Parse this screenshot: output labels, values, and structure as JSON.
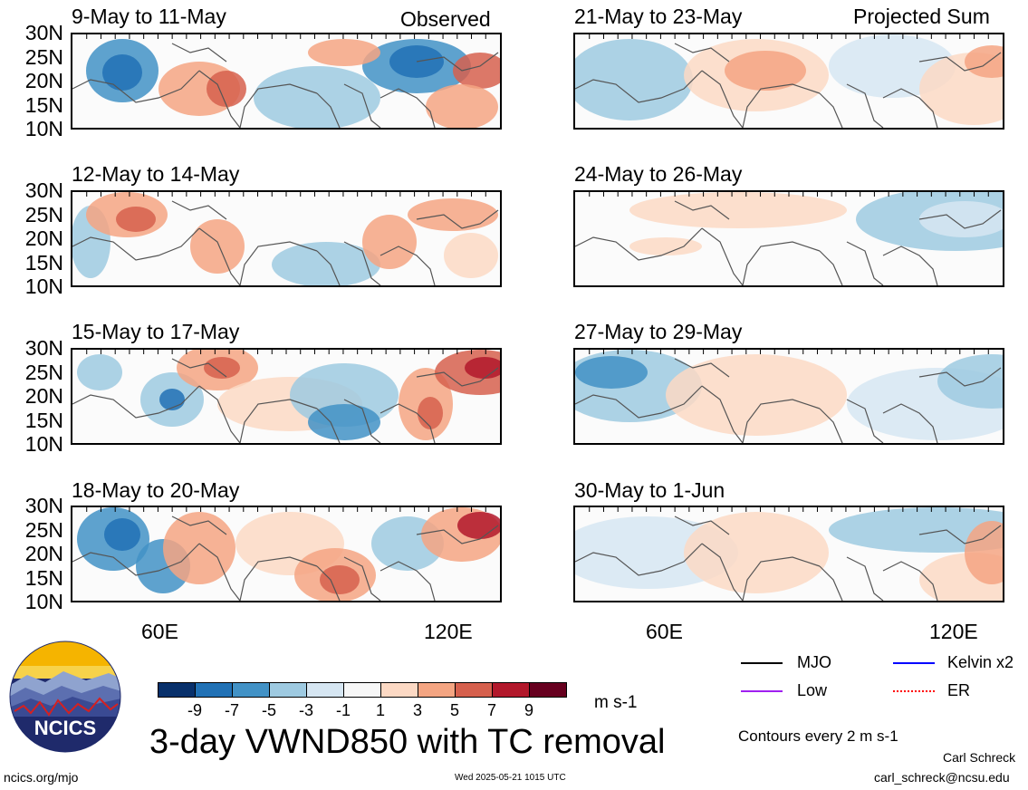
{
  "header": {
    "observed_label": "Observed",
    "projected_label": "Projected Sum"
  },
  "panels": {
    "left": [
      {
        "title": "9-May to 11-May"
      },
      {
        "title": "12-May to 14-May"
      },
      {
        "title": "15-May to 17-May"
      },
      {
        "title": "18-May to 20-May"
      }
    ],
    "right": [
      {
        "title": "21-May to 23-May"
      },
      {
        "title": "24-May to 26-May"
      },
      {
        "title": "27-May to 29-May"
      },
      {
        "title": "30-May to 1-Jun"
      }
    ]
  },
  "axes": {
    "lat_labels": [
      "30N",
      "25N",
      "20N",
      "15N",
      "10N"
    ],
    "lon_labels": [
      "60E",
      "120E"
    ]
  },
  "colorbar": {
    "labels": [
      "-9",
      "-7",
      "-5",
      "-3",
      "-1",
      "1",
      "3",
      "5",
      "7",
      "9"
    ],
    "colors": [
      "#08306b",
      "#2171b5",
      "#4292c6",
      "#9ecae1",
      "#d6e6f2",
      "#f7f7f7",
      "#fcd9c4",
      "#f4a582",
      "#d6604d",
      "#b2182b",
      "#67001f"
    ],
    "units": "m s-1"
  },
  "legend": {
    "items": [
      {
        "label": "MJO",
        "color": "#000000"
      },
      {
        "label": "Kelvin x2",
        "color": "#0000ff"
      },
      {
        "label": "Low",
        "color": "#a020f0"
      },
      {
        "label": "ER",
        "color": "#ff0000"
      }
    ],
    "contour_note": "Contours every 2 m s-1"
  },
  "main_title": "3-day VWND850 with TC removal",
  "logo_text": "NCICS",
  "footer": {
    "url": "ncics.org/mjo",
    "timestamp": "Wed 2025-05-21 1015 UTC",
    "author": "Carl Schreck",
    "email": "carl_schreck@ncsu.edu"
  }
}
